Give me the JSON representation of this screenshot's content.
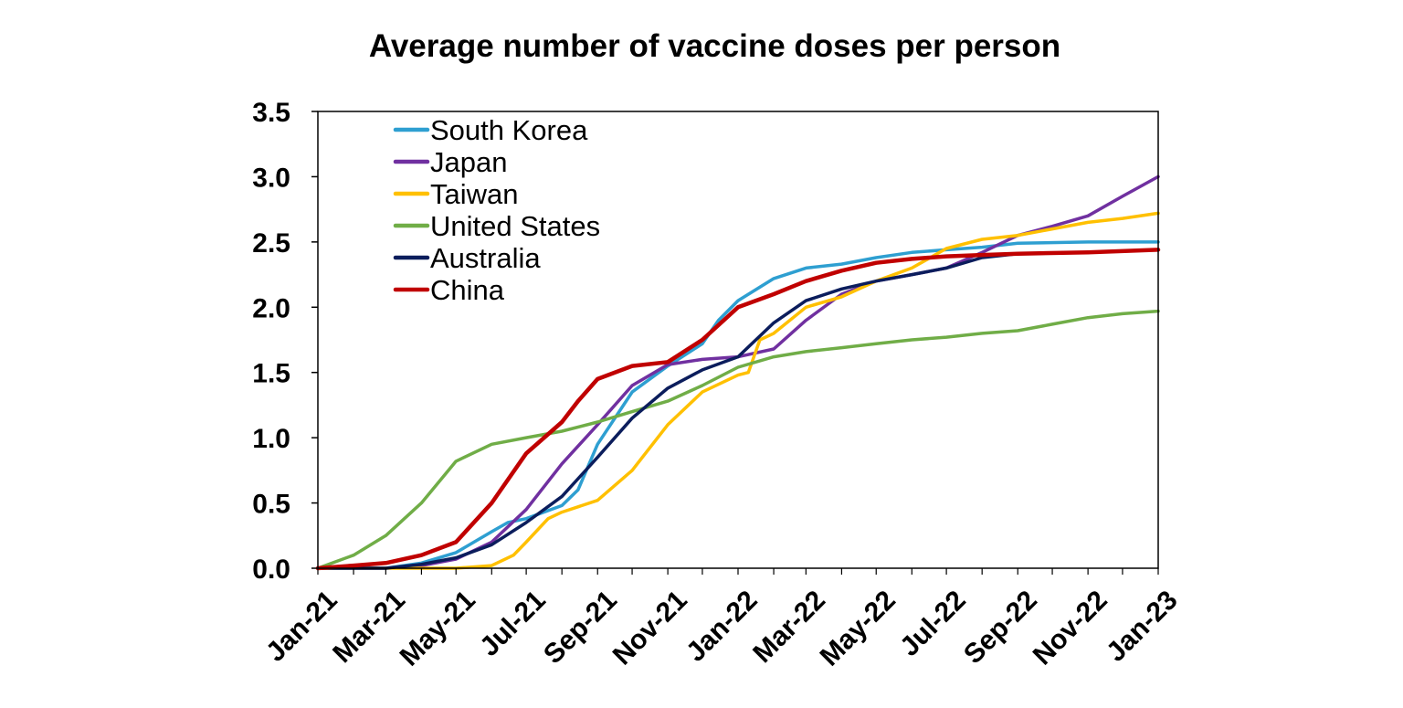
{
  "chart_data": {
    "type": "line",
    "title": "Average number of vaccine doses per person",
    "xlabel": "",
    "ylabel": "",
    "ylim": [
      0,
      3.5
    ],
    "y_ticks": [
      "0.0",
      "0.5",
      "1.0",
      "1.5",
      "2.0",
      "2.5",
      "3.0",
      "3.5"
    ],
    "x_range": [
      "2021-01",
      "2023-01"
    ],
    "x_ticks": [
      "Jan-21",
      "Mar-21",
      "May-21",
      "Jul-21",
      "Sep-21",
      "Nov-21",
      "Jan-22",
      "Mar-22",
      "May-22",
      "Jul-22",
      "Sep-22",
      "Nov-22",
      "Jan-23"
    ],
    "grid": false,
    "legend_position": "top-left",
    "series": [
      {
        "name": "South Korea",
        "color": "#2E9FD1",
        "points": [
          [
            "2021-01",
            0
          ],
          [
            "2021-03",
            0
          ],
          [
            "2021-04",
            0.04
          ],
          [
            "2021-05",
            0.12
          ],
          [
            "2021-06",
            0.28
          ],
          [
            "2021-06-15",
            0.35
          ],
          [
            "2021-07",
            0.38
          ],
          [
            "2021-08",
            0.48
          ],
          [
            "2021-08-15",
            0.6
          ],
          [
            "2021-09",
            0.95
          ],
          [
            "2021-10",
            1.35
          ],
          [
            "2021-11",
            1.55
          ],
          [
            "2021-12",
            1.72
          ],
          [
            "2021-12-15",
            1.9
          ],
          [
            "2022-01",
            2.05
          ],
          [
            "2022-02",
            2.22
          ],
          [
            "2022-03",
            2.3
          ],
          [
            "2022-04",
            2.33
          ],
          [
            "2022-05",
            2.38
          ],
          [
            "2022-06",
            2.42
          ],
          [
            "2022-07",
            2.44
          ],
          [
            "2022-08",
            2.46
          ],
          [
            "2022-09",
            2.49
          ],
          [
            "2022-11",
            2.5
          ],
          [
            "2023-01",
            2.5
          ]
        ]
      },
      {
        "name": "Japan",
        "color": "#7030A0",
        "points": [
          [
            "2021-01",
            0
          ],
          [
            "2021-03",
            0
          ],
          [
            "2021-04",
            0.02
          ],
          [
            "2021-05",
            0.07
          ],
          [
            "2021-06",
            0.2
          ],
          [
            "2021-07",
            0.45
          ],
          [
            "2021-08",
            0.8
          ],
          [
            "2021-09",
            1.1
          ],
          [
            "2021-10",
            1.4
          ],
          [
            "2021-11",
            1.56
          ],
          [
            "2021-12",
            1.6
          ],
          [
            "2022-01",
            1.62
          ],
          [
            "2022-02",
            1.68
          ],
          [
            "2022-03",
            1.9
          ],
          [
            "2022-04",
            2.1
          ],
          [
            "2022-05",
            2.2
          ],
          [
            "2022-06",
            2.25
          ],
          [
            "2022-07",
            2.3
          ],
          [
            "2022-08",
            2.42
          ],
          [
            "2022-09",
            2.55
          ],
          [
            "2022-10",
            2.62
          ],
          [
            "2022-11",
            2.7
          ],
          [
            "2022-12",
            2.85
          ],
          [
            "2023-01",
            3.0
          ]
        ]
      },
      {
        "name": "Taiwan",
        "color": "#FFC000",
        "points": [
          [
            "2021-01",
            0
          ],
          [
            "2021-05",
            0
          ],
          [
            "2021-06",
            0.02
          ],
          [
            "2021-06-20",
            0.1
          ],
          [
            "2021-07",
            0.2
          ],
          [
            "2021-07-20",
            0.38
          ],
          [
            "2021-08",
            0.43
          ],
          [
            "2021-09",
            0.52
          ],
          [
            "2021-10",
            0.75
          ],
          [
            "2021-11",
            1.1
          ],
          [
            "2021-12",
            1.35
          ],
          [
            "2022-01",
            1.48
          ],
          [
            "2022-01-10",
            1.5
          ],
          [
            "2022-01-20",
            1.75
          ],
          [
            "2022-02",
            1.8
          ],
          [
            "2022-03",
            2.0
          ],
          [
            "2022-04",
            2.08
          ],
          [
            "2022-05",
            2.2
          ],
          [
            "2022-06",
            2.3
          ],
          [
            "2022-07",
            2.45
          ],
          [
            "2022-08",
            2.52
          ],
          [
            "2022-09",
            2.55
          ],
          [
            "2022-10",
            2.6
          ],
          [
            "2022-11",
            2.65
          ],
          [
            "2022-12",
            2.68
          ],
          [
            "2023-01",
            2.72
          ]
        ]
      },
      {
        "name": "United States",
        "color": "#70AD47",
        "points": [
          [
            "2021-01",
            0
          ],
          [
            "2021-02",
            0.1
          ],
          [
            "2021-03",
            0.25
          ],
          [
            "2021-04",
            0.5
          ],
          [
            "2021-05",
            0.82
          ],
          [
            "2021-06",
            0.95
          ],
          [
            "2021-07",
            1.0
          ],
          [
            "2021-08",
            1.05
          ],
          [
            "2021-09",
            1.12
          ],
          [
            "2021-10",
            1.2
          ],
          [
            "2021-11",
            1.28
          ],
          [
            "2021-12",
            1.4
          ],
          [
            "2022-01",
            1.54
          ],
          [
            "2022-02",
            1.62
          ],
          [
            "2022-03",
            1.66
          ],
          [
            "2022-04",
            1.69
          ],
          [
            "2022-05",
            1.72
          ],
          [
            "2022-06",
            1.75
          ],
          [
            "2022-07",
            1.77
          ],
          [
            "2022-08",
            1.8
          ],
          [
            "2022-09",
            1.82
          ],
          [
            "2022-10",
            1.87
          ],
          [
            "2022-11",
            1.92
          ],
          [
            "2022-12",
            1.95
          ],
          [
            "2023-01",
            1.97
          ]
        ]
      },
      {
        "name": "Australia",
        "color": "#0B1D5C",
        "points": [
          [
            "2021-01",
            0
          ],
          [
            "2021-03",
            0
          ],
          [
            "2021-04",
            0.03
          ],
          [
            "2021-05",
            0.08
          ],
          [
            "2021-06",
            0.18
          ],
          [
            "2021-07",
            0.35
          ],
          [
            "2021-08",
            0.55
          ],
          [
            "2021-09",
            0.85
          ],
          [
            "2021-10",
            1.15
          ],
          [
            "2021-11",
            1.38
          ],
          [
            "2021-12",
            1.52
          ],
          [
            "2022-01",
            1.62
          ],
          [
            "2022-02",
            1.88
          ],
          [
            "2022-03",
            2.05
          ],
          [
            "2022-04",
            2.14
          ],
          [
            "2022-05",
            2.2
          ],
          [
            "2022-06",
            2.25
          ],
          [
            "2022-07",
            2.3
          ],
          [
            "2022-08",
            2.38
          ],
          [
            "2022-09",
            2.41
          ],
          [
            "2022-11",
            2.42
          ],
          [
            "2023-01",
            2.44
          ]
        ]
      },
      {
        "name": "China",
        "color": "#C00000",
        "points": [
          [
            "2021-01",
            0
          ],
          [
            "2021-02",
            0.02
          ],
          [
            "2021-03",
            0.04
          ],
          [
            "2021-04",
            0.1
          ],
          [
            "2021-05",
            0.2
          ],
          [
            "2021-06",
            0.5
          ],
          [
            "2021-07",
            0.88
          ],
          [
            "2021-08",
            1.12
          ],
          [
            "2021-08-15",
            1.28
          ],
          [
            "2021-09",
            1.45
          ],
          [
            "2021-10",
            1.55
          ],
          [
            "2021-11",
            1.58
          ],
          [
            "2021-12",
            1.75
          ],
          [
            "2022-01",
            2.0
          ],
          [
            "2022-02",
            2.1
          ],
          [
            "2022-03",
            2.2
          ],
          [
            "2022-04",
            2.28
          ],
          [
            "2022-05",
            2.34
          ],
          [
            "2022-06",
            2.37
          ],
          [
            "2022-07",
            2.39
          ],
          [
            "2022-08",
            2.4
          ],
          [
            "2022-09",
            2.41
          ],
          [
            "2022-11",
            2.42
          ],
          [
            "2023-01",
            2.44
          ]
        ]
      }
    ]
  }
}
